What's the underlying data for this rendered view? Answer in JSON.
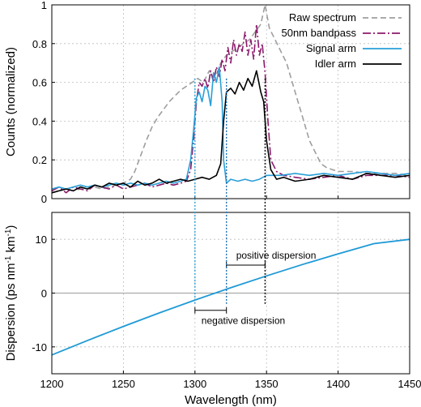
{
  "chart_data": [
    {
      "type": "line",
      "ylabel": "Counts (normalized)",
      "ylim": [
        0,
        1
      ],
      "yticks": [
        "0",
        "0.2",
        "0.4",
        "0.6",
        "0.8",
        "1"
      ],
      "grid": true,
      "legend_position": "top-right",
      "series": [
        {
          "name": "Raw spectrum",
          "color": "#9e9e9e",
          "style": "dashed",
          "x": [
            1200,
            1205,
            1210,
            1215,
            1220,
            1225,
            1230,
            1235,
            1240,
            1245,
            1250,
            1255,
            1258,
            1262,
            1266,
            1270,
            1274,
            1278,
            1282,
            1286,
            1290,
            1294,
            1298,
            1302,
            1306,
            1310,
            1314,
            1318,
            1322,
            1326,
            1330,
            1334,
            1338,
            1342,
            1346,
            1349,
            1352,
            1356,
            1360,
            1364,
            1368,
            1372,
            1376,
            1380,
            1384,
            1388,
            1392,
            1396,
            1400,
            1410,
            1420,
            1430,
            1440,
            1450
          ],
          "values": [
            0.03,
            0.04,
            0.05,
            0.04,
            0.05,
            0.05,
            0.06,
            0.05,
            0.06,
            0.07,
            0.08,
            0.1,
            0.14,
            0.22,
            0.3,
            0.37,
            0.42,
            0.46,
            0.5,
            0.53,
            0.56,
            0.58,
            0.6,
            0.62,
            0.6,
            0.66,
            0.62,
            0.7,
            0.74,
            0.76,
            0.78,
            0.8,
            0.82,
            0.86,
            0.9,
            1.0,
            0.88,
            0.82,
            0.76,
            0.7,
            0.6,
            0.5,
            0.4,
            0.3,
            0.24,
            0.18,
            0.16,
            0.15,
            0.14,
            0.14,
            0.13,
            0.13,
            0.13,
            0.12
          ]
        },
        {
          "name": "50nm bandpass",
          "color": "#8b1a6b",
          "style": "dash-dot",
          "x": [
            1200,
            1205,
            1210,
            1215,
            1220,
            1225,
            1230,
            1235,
            1240,
            1245,
            1250,
            1255,
            1260,
            1265,
            1270,
            1275,
            1280,
            1285,
            1290,
            1294,
            1297,
            1299,
            1301,
            1303,
            1305,
            1307,
            1309,
            1311,
            1313,
            1315,
            1317,
            1319,
            1321,
            1323,
            1325,
            1327,
            1329,
            1331,
            1333,
            1335,
            1337,
            1339,
            1341,
            1343,
            1345,
            1347,
            1349,
            1351,
            1353,
            1357,
            1362,
            1370,
            1380,
            1390,
            1400,
            1410,
            1420,
            1430,
            1440,
            1450
          ],
          "values": [
            0.04,
            0.06,
            0.03,
            0.06,
            0.05,
            0.04,
            0.07,
            0.06,
            0.05,
            0.07,
            0.05,
            0.06,
            0.07,
            0.08,
            0.06,
            0.07,
            0.08,
            0.07,
            0.08,
            0.09,
            0.15,
            0.3,
            0.5,
            0.6,
            0.58,
            0.62,
            0.57,
            0.66,
            0.6,
            0.68,
            0.63,
            0.72,
            0.66,
            0.78,
            0.7,
            0.82,
            0.74,
            0.8,
            0.76,
            0.86,
            0.74,
            0.82,
            0.72,
            0.9,
            0.74,
            0.8,
            0.65,
            0.4,
            0.2,
            0.14,
            0.12,
            0.11,
            0.1,
            0.11,
            0.12,
            0.1,
            0.12,
            0.12,
            0.12,
            0.11
          ]
        },
        {
          "name": "Signal arm",
          "color": "#2a9fd8",
          "style": "solid",
          "x": [
            1200,
            1205,
            1210,
            1215,
            1220,
            1225,
            1230,
            1235,
            1240,
            1245,
            1250,
            1255,
            1260,
            1265,
            1270,
            1275,
            1280,
            1285,
            1290,
            1294,
            1297,
            1299,
            1301,
            1303,
            1305,
            1307,
            1309,
            1311,
            1313,
            1315,
            1317,
            1319,
            1320,
            1322,
            1325,
            1330,
            1335,
            1340,
            1345,
            1350,
            1360,
            1370,
            1380,
            1390,
            1400,
            1410,
            1420,
            1430,
            1440,
            1450
          ],
          "values": [
            0.05,
            0.06,
            0.05,
            0.06,
            0.07,
            0.06,
            0.07,
            0.06,
            0.07,
            0.08,
            0.07,
            0.08,
            0.07,
            0.08,
            0.07,
            0.08,
            0.09,
            0.08,
            0.09,
            0.1,
            0.2,
            0.35,
            0.52,
            0.55,
            0.5,
            0.58,
            0.56,
            0.48,
            0.65,
            0.6,
            0.68,
            0.5,
            0.2,
            0.08,
            0.1,
            0.09,
            0.1,
            0.09,
            0.1,
            0.12,
            0.12,
            0.13,
            0.12,
            0.13,
            0.12,
            0.13,
            0.14,
            0.13,
            0.12,
            0.13
          ]
        },
        {
          "name": "Idler arm",
          "color": "#000000",
          "style": "solid",
          "x": [
            1200,
            1205,
            1210,
            1215,
            1220,
            1225,
            1230,
            1235,
            1240,
            1245,
            1250,
            1255,
            1260,
            1265,
            1270,
            1275,
            1280,
            1285,
            1290,
            1295,
            1300,
            1305,
            1310,
            1315,
            1318,
            1320,
            1322,
            1325,
            1328,
            1331,
            1334,
            1337,
            1340,
            1343,
            1346,
            1348,
            1350,
            1353,
            1357,
            1362,
            1370,
            1380,
            1390,
            1400,
            1410,
            1420,
            1430,
            1440,
            1450
          ],
          "values": [
            0.03,
            0.04,
            0.05,
            0.04,
            0.06,
            0.05,
            0.07,
            0.06,
            0.08,
            0.07,
            0.08,
            0.06,
            0.09,
            0.07,
            0.08,
            0.1,
            0.08,
            0.09,
            0.1,
            0.09,
            0.1,
            0.11,
            0.1,
            0.12,
            0.18,
            0.4,
            0.55,
            0.57,
            0.54,
            0.6,
            0.56,
            0.62,
            0.58,
            0.66,
            0.55,
            0.5,
            0.3,
            0.15,
            0.1,
            0.11,
            0.09,
            0.1,
            0.12,
            0.11,
            0.1,
            0.13,
            0.12,
            0.11,
            0.12
          ]
        }
      ]
    },
    {
      "type": "line",
      "xlabel": "Wavelength (nm)",
      "ylabel_parts": [
        "Dispersion (ps nm",
        "-1",
        " km",
        "-1",
        ")"
      ],
      "xlim": [
        1200,
        1450
      ],
      "ylim": [
        -15,
        15
      ],
      "xticks": [
        "1200",
        "1250",
        "1300",
        "1350",
        "1400",
        "1450"
      ],
      "yticks": [
        "-10",
        "0",
        "10"
      ],
      "grid": true,
      "series": [
        {
          "color": "#1f9ad6",
          "style": "solid",
          "x": [
            1200,
            1225,
            1250,
            1275,
            1300,
            1325,
            1350,
            1375,
            1400,
            1425,
            1450
          ],
          "values": [
            -11.5,
            -8.8,
            -6.2,
            -3.7,
            -1.3,
            1.0,
            3.2,
            5.3,
            7.3,
            9.2,
            10.0
          ]
        }
      ],
      "annotations": [
        {
          "label": "positive dispersion",
          "x_from": 1322,
          "x_to": 1349,
          "y": 5.2
        },
        {
          "label": "negative dispersion",
          "x_from": 1300,
          "x_to": 1322,
          "y": -3.2
        }
      ],
      "markers": [
        {
          "x": 1300,
          "color": "#2a9fd8"
        },
        {
          "x": 1322,
          "color": "#1f6fb0"
        },
        {
          "x": 1349,
          "color": "#000000"
        }
      ]
    }
  ]
}
